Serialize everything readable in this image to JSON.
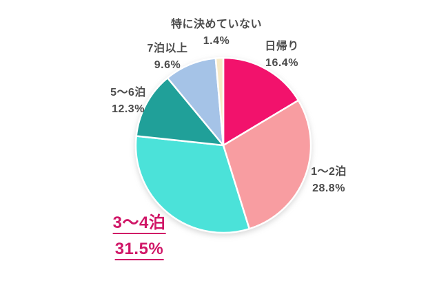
{
  "chart_data": {
    "type": "pie",
    "title": "",
    "direction": "clockwise",
    "start_angle_deg": 0,
    "background": "#FFFFFF",
    "stroke_color": "#FFFFFF",
    "label_color": "#4B4B4B",
    "highlight_color": "#D01667",
    "segments": [
      {
        "label": "日帰り",
        "value": 16.4,
        "pct_label": "16.4%",
        "color": "#F2126C",
        "highlighted": false
      },
      {
        "label": "1〜2泊",
        "value": 28.8,
        "pct_label": "28.8%",
        "color": "#F89DA1",
        "highlighted": false
      },
      {
        "label": "3〜4泊",
        "value": 31.5,
        "pct_label": "31.5%",
        "color": "#4BE2D9",
        "highlighted": true
      },
      {
        "label": "5〜6泊",
        "value": 12.3,
        "pct_label": "12.3%",
        "color": "#20A099",
        "highlighted": false
      },
      {
        "label": "7泊以上",
        "value": 9.6,
        "pct_label": "9.6%",
        "color": "#A5C3E7",
        "highlighted": false
      },
      {
        "label": "特に決めていない",
        "value": 1.4,
        "pct_label": "1.4%",
        "color": "#F7EAC7",
        "highlighted": false
      }
    ]
  }
}
